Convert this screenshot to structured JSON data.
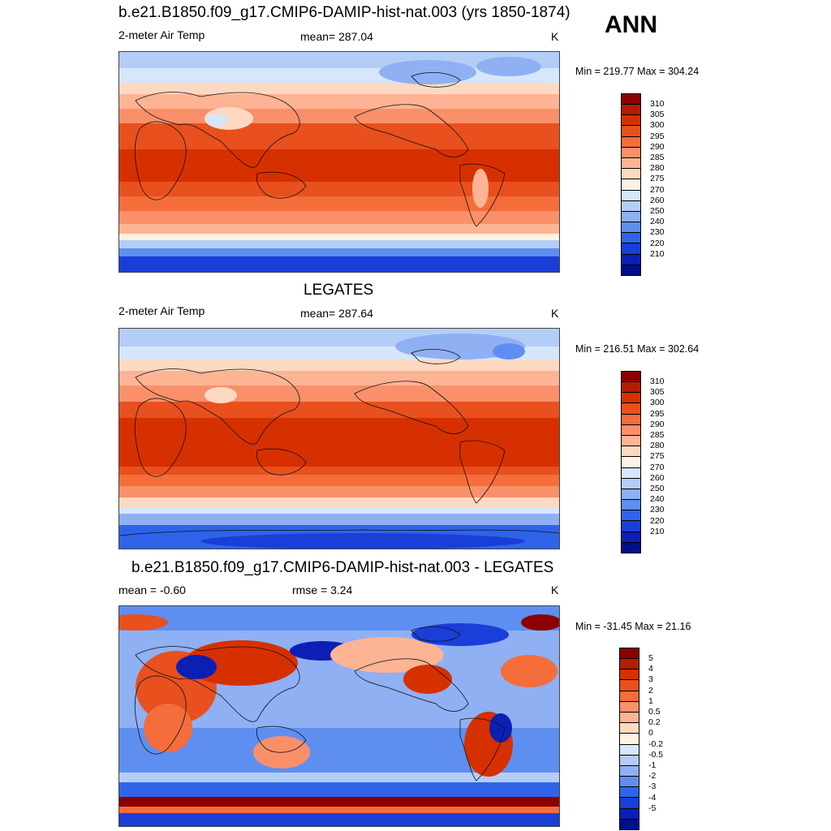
{
  "season": "ANN",
  "panels": [
    {
      "title": "b.e21.B1850.f09_g17.CMIP6-DAMIP-hist-nat.003 (yrs 1850-1874)",
      "variable": "2-meter Air Temp",
      "stat": "mean= 287.04",
      "units": "K",
      "minmax": "Min = 219.77 Max = 304.24"
    },
    {
      "title": "LEGATES",
      "variable": "2-meter Air Temp",
      "stat": "mean= 287.64",
      "units": "K",
      "minmax": "Min = 216.51 Max = 302.64"
    },
    {
      "title": "b.e21.B1850.f09_g17.CMIP6-DAMIP-hist-nat.003 - LEGATES",
      "variable": "mean =  -0.60",
      "stat": "rmse =   3.24",
      "units": "K",
      "minmax": "Min = -31.45 Max =  21.16"
    }
  ],
  "colorbars": {
    "temp": {
      "labels": [
        "310",
        "305",
        "300",
        "295",
        "290",
        "285",
        "280",
        "275",
        "270",
        "260",
        "250",
        "240",
        "230",
        "220",
        "210"
      ],
      "colors": [
        "#8b0000",
        "#b31d00",
        "#d73000",
        "#e8501e",
        "#f46d3b",
        "#f9906a",
        "#fcb494",
        "#fdd9c2",
        "#fff2e2",
        "#d6e6fb",
        "#b4cdf7",
        "#8fb0f2",
        "#5e8ff0",
        "#2f64ea",
        "#1a3ed8",
        "#0b1fb5",
        "#000f8a"
      ]
    },
    "diff": {
      "labels": [
        "5",
        "4",
        "3",
        "2",
        "1",
        "0.5",
        "0.2",
        "0",
        "-0.2",
        "-0.5",
        "-1",
        "-2",
        "-3",
        "-4",
        "-5"
      ],
      "colors": [
        "#8b0000",
        "#b31d00",
        "#d73000",
        "#e8501e",
        "#f46d3b",
        "#f9906a",
        "#fcb494",
        "#fdd9c2",
        "#fff2e2",
        "#d6e6fb",
        "#b4cdf7",
        "#8fb0f2",
        "#5e8ff0",
        "#2f64ea",
        "#1a3ed8",
        "#0b1fb5",
        "#000f8a"
      ]
    }
  }
}
